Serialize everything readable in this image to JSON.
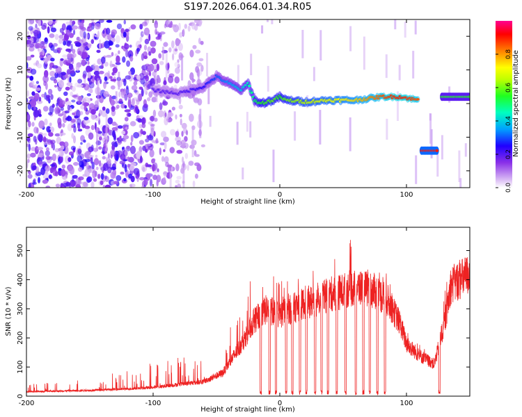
{
  "title": "S197.2026.064.01.34.R05",
  "chart_data": [
    {
      "type": "heatmap",
      "xlabel": "Height of straight line (km)",
      "ylabel": "Frequency (Hz)",
      "xlim": [
        -200,
        150
      ],
      "ylim": [
        -25,
        25
      ],
      "xticks": [
        -200,
        -100,
        0,
        100
      ],
      "yticks": [
        -20,
        -10,
        0,
        10,
        20
      ],
      "colorbar": {
        "label": "Normalized spectral amplitude",
        "range": [
          0,
          1
        ],
        "ticks": [
          "0.0",
          "0.2",
          "0.4",
          "0.6",
          "0.8"
        ],
        "colors": [
          "#ffffff",
          "#c8a0f0",
          "#6a00e0",
          "#0000ff",
          "#00c8ff",
          "#00ff80",
          "#80ff00",
          "#ffff00",
          "#ff8000",
          "#ff0000",
          "#ff0080"
        ]
      },
      "noise_region": {
        "x": [
          -200,
          -70
        ],
        "y": [
          -25,
          25
        ],
        "amplitude": 0.15
      },
      "tonal_track": [
        {
          "x": -100,
          "f": 4,
          "a": 0.2
        },
        {
          "x": -80,
          "f": 3,
          "a": 0.2
        },
        {
          "x": -60,
          "f": 5,
          "a": 0.25
        },
        {
          "x": -50,
          "f": 8,
          "a": 0.3
        },
        {
          "x": -40,
          "f": 6,
          "a": 0.35
        },
        {
          "x": -30,
          "f": 4,
          "a": 0.4
        },
        {
          "x": -25,
          "f": 6,
          "a": 0.45
        },
        {
          "x": -20,
          "f": 1,
          "a": 0.5
        },
        {
          "x": -15,
          "f": 0,
          "a": 0.55
        },
        {
          "x": -5,
          "f": 1,
          "a": 0.6
        },
        {
          "x": 0,
          "f": 2,
          "a": 0.55
        },
        {
          "x": 5,
          "f": 1,
          "a": 0.6
        },
        {
          "x": 20,
          "f": 0.5,
          "a": 0.65
        },
        {
          "x": 40,
          "f": 1,
          "a": 0.7
        },
        {
          "x": 60,
          "f": 1,
          "a": 0.75
        },
        {
          "x": 80,
          "f": 2,
          "a": 0.85
        },
        {
          "x": 95,
          "f": 2,
          "a": 0.9
        },
        {
          "x": 110,
          "f": 1,
          "a": 0.85
        }
      ],
      "segments": [
        {
          "x0": 112,
          "x1": 124,
          "f": -14,
          "a": 0.9
        },
        {
          "x0": 128,
          "x1": 150,
          "f": 2,
          "a": 0.55
        }
      ]
    },
    {
      "type": "line",
      "xlabel": "Height of straight line (km)",
      "ylabel": "SNR (10 * v/v)",
      "xlim": [
        -200,
        150
      ],
      "ylim": [
        0,
        580
      ],
      "xticks": [
        -200,
        -100,
        0,
        100
      ],
      "yticks": [
        0,
        100,
        200,
        300,
        400,
        500
      ],
      "color": "#ee2222",
      "envelope": [
        {
          "x": -200,
          "base": 15,
          "peak": 40
        },
        {
          "x": -150,
          "base": 20,
          "peak": 60
        },
        {
          "x": -120,
          "base": 25,
          "peak": 90
        },
        {
          "x": -100,
          "base": 30,
          "peak": 120
        },
        {
          "x": -80,
          "base": 40,
          "peak": 140
        },
        {
          "x": -60,
          "base": 50,
          "peak": 130
        },
        {
          "x": -45,
          "base": 80,
          "peak": 160
        },
        {
          "x": -30,
          "base": 180,
          "peak": 350
        },
        {
          "x": -20,
          "base": 260,
          "peak": 420
        },
        {
          "x": -10,
          "base": 300,
          "peak": 430
        },
        {
          "x": 0,
          "base": 280,
          "peak": 400
        },
        {
          "x": 10,
          "base": 300,
          "peak": 420
        },
        {
          "x": 20,
          "base": 320,
          "peak": 430
        },
        {
          "x": 30,
          "base": 330,
          "peak": 450
        },
        {
          "x": 40,
          "base": 350,
          "peak": 480
        },
        {
          "x": 50,
          "base": 360,
          "peak": 520
        },
        {
          "x": 55,
          "base": 370,
          "peak": 560
        },
        {
          "x": 65,
          "base": 370,
          "peak": 480
        },
        {
          "x": 75,
          "base": 360,
          "peak": 450
        },
        {
          "x": 85,
          "base": 330,
          "peak": 420
        },
        {
          "x": 95,
          "base": 250,
          "peak": 300
        },
        {
          "x": 100,
          "base": 180,
          "peak": 240
        },
        {
          "x": 110,
          "base": 140,
          "peak": 180
        },
        {
          "x": 122,
          "base": 110,
          "peak": 140
        },
        {
          "x": 130,
          "base": 250,
          "peak": 400
        },
        {
          "x": 135,
          "base": 380,
          "peak": 500
        },
        {
          "x": 150,
          "base": 420,
          "peak": 480
        }
      ],
      "dropouts_x": [
        -15,
        -8,
        -3,
        5,
        10,
        16,
        21,
        28,
        33,
        38,
        45,
        52,
        60,
        66,
        71,
        77,
        83,
        126
      ]
    }
  ]
}
